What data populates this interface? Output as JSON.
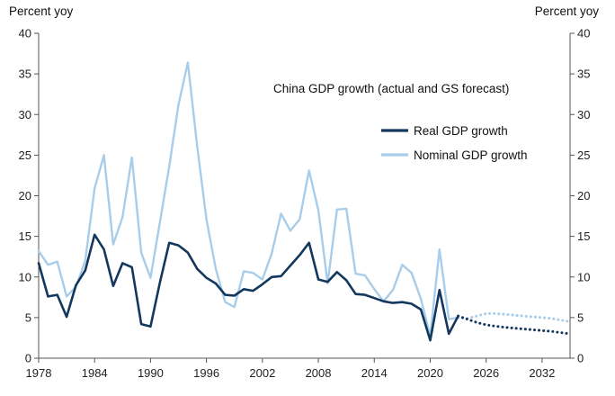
{
  "chart_data": {
    "type": "line",
    "title": "China GDP growth (actual and GS forecast)",
    "ylabel_left": "Percent yoy",
    "ylabel_right": "Percent yoy",
    "xlim": [
      1978,
      2035
    ],
    "ylim": [
      0,
      40
    ],
    "x_ticks": [
      1978,
      1984,
      1990,
      1996,
      2002,
      2008,
      2014,
      2020,
      2026,
      2032
    ],
    "y_ticks": [
      0,
      5,
      10,
      15,
      20,
      25,
      30,
      35,
      40
    ],
    "legend_position": "upper-right",
    "series": [
      {
        "name": "Real GDP growth",
        "color": "#14375e",
        "style": "solid",
        "x": [
          1978,
          1979,
          1980,
          1981,
          1982,
          1983,
          1984,
          1985,
          1986,
          1987,
          1988,
          1989,
          1990,
          1991,
          1992,
          1993,
          1994,
          1995,
          1996,
          1997,
          1998,
          1999,
          2000,
          2001,
          2002,
          2003,
          2004,
          2005,
          2006,
          2007,
          2008,
          2009,
          2010,
          2011,
          2012,
          2013,
          2014,
          2015,
          2016,
          2017,
          2018,
          2019,
          2020,
          2021,
          2022,
          2023
        ],
        "values": [
          11.7,
          7.6,
          7.8,
          5.1,
          9.0,
          10.8,
          15.2,
          13.4,
          8.9,
          11.7,
          11.2,
          4.2,
          3.9,
          9.3,
          14.2,
          13.9,
          13.0,
          11.0,
          9.9,
          9.2,
          7.8,
          7.7,
          8.5,
          8.3,
          9.1,
          10.0,
          10.1,
          11.4,
          12.7,
          14.2,
          9.7,
          9.4,
          10.6,
          9.6,
          7.9,
          7.8,
          7.4,
          7.0,
          6.8,
          6.9,
          6.7,
          6.0,
          2.2,
          8.4,
          3.0,
          5.2
        ]
      },
      {
        "name": "Nominal GDP growth",
        "color": "#a8cdea",
        "style": "solid",
        "x": [
          1978,
          1979,
          1980,
          1981,
          1982,
          1983,
          1984,
          1985,
          1986,
          1987,
          1988,
          1989,
          1990,
          1991,
          1992,
          1993,
          1994,
          1995,
          1996,
          1997,
          1998,
          1999,
          2000,
          2001,
          2002,
          2003,
          2004,
          2005,
          2006,
          2007,
          2008,
          2009,
          2010,
          2011,
          2012,
          2013,
          2014,
          2015,
          2016,
          2017,
          2018,
          2019,
          2020,
          2021,
          2022,
          2023
        ],
        "values": [
          13.2,
          11.5,
          11.9,
          7.6,
          8.8,
          12.0,
          20.9,
          25.0,
          14.0,
          17.4,
          24.7,
          13.0,
          9.9,
          16.7,
          23.6,
          31.2,
          36.4,
          26.1,
          17.1,
          11.0,
          6.9,
          6.3,
          10.7,
          10.5,
          9.7,
          12.9,
          17.8,
          15.7,
          17.1,
          23.1,
          18.2,
          9.2,
          18.3,
          18.4,
          10.4,
          10.2,
          8.5,
          7.0,
          8.4,
          11.5,
          10.5,
          7.3,
          2.7,
          13.4,
          4.8,
          5.0
        ]
      },
      {
        "name": "Real GDP growth (GS forecast)",
        "color": "#14375e",
        "style": "dotted",
        "x": [
          2023,
          2024,
          2025,
          2026,
          2027,
          2028,
          2029,
          2030,
          2031,
          2032,
          2033,
          2034,
          2035
        ],
        "values": [
          5.2,
          4.8,
          4.4,
          4.1,
          3.95,
          3.8,
          3.7,
          3.6,
          3.5,
          3.4,
          3.3,
          3.15,
          3.0
        ]
      },
      {
        "name": "Nominal GDP growth (GS forecast)",
        "color": "#a8cdea",
        "style": "dotted",
        "x": [
          2023,
          2024,
          2025,
          2026,
          2027,
          2028,
          2029,
          2030,
          2031,
          2032,
          2033,
          2034,
          2035
        ],
        "values": [
          5.0,
          4.9,
          5.2,
          5.5,
          5.5,
          5.4,
          5.3,
          5.2,
          5.1,
          5.0,
          4.9,
          4.7,
          4.5
        ]
      }
    ],
    "legend": [
      {
        "label": "Real GDP growth",
        "color": "#14375e"
      },
      {
        "label": "Nominal GDP growth",
        "color": "#a8cdea"
      }
    ]
  }
}
